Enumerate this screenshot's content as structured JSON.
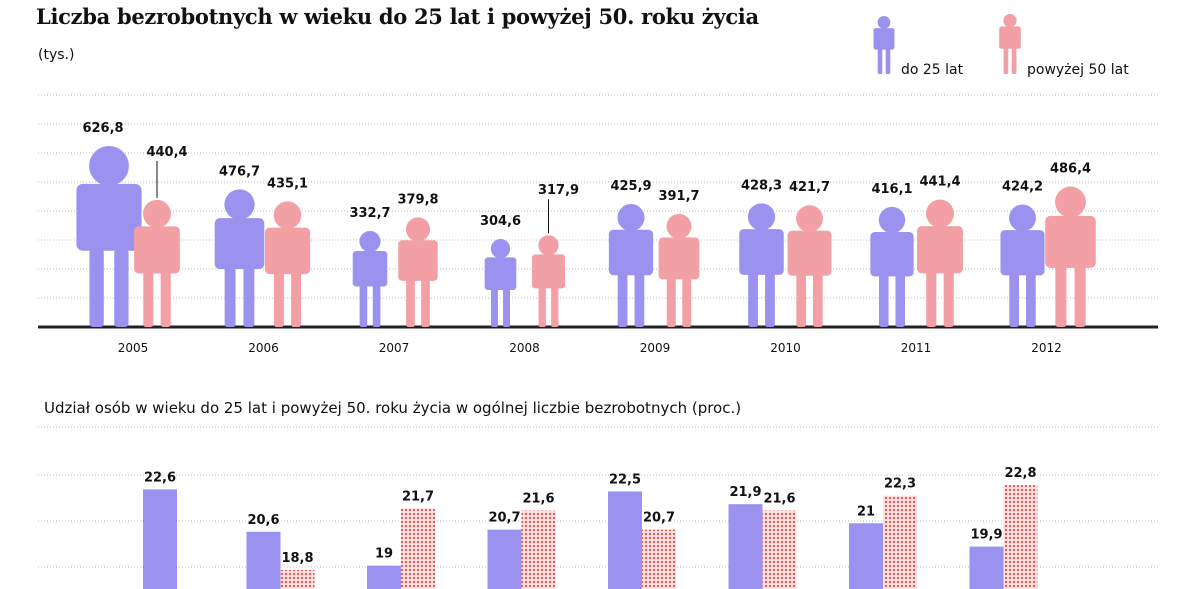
{
  "title": "Liczba bezrobotnych w wieku do 25 lat i powyżej 50. roku życia",
  "unit": "(tys.)",
  "legend": [
    {
      "name": "do 25 lat",
      "color": "#9b92f0",
      "icon": "person-icon"
    },
    {
      "name": "powyżej 50 lat",
      "color": "#f2a0a5",
      "icon": "person-icon"
    }
  ],
  "subtitle": "Udział osób w wieku do 25 lat i powyżej 50. roku życia w ogólnej liczbie bezrobotnych (proc.)",
  "chart_data": [
    {
      "type": "bar",
      "title": "Liczba bezrobotnych w wieku do 25 lat i powyżej 50. roku życia",
      "ylabel": "(tys.)",
      "categories": [
        "2005",
        "2006",
        "2007",
        "2008",
        "2009",
        "2010",
        "2011",
        "2012"
      ],
      "series": [
        {
          "name": "do 25 lat",
          "values": [
            626.8,
            476.7,
            332.7,
            304.6,
            425.9,
            428.3,
            416.1,
            424.2
          ],
          "labels": [
            "626,8",
            "476,7",
            "332,7",
            "304,6",
            "425,9",
            "428,3",
            "416,1",
            "424,2"
          ]
        },
        {
          "name": "powyżej 50 lat",
          "values": [
            440.4,
            435.1,
            379.8,
            317.9,
            391.7,
            421.7,
            441.4,
            486.4
          ],
          "labels": [
            "440,4",
            "435,1",
            "379,8",
            "317,9",
            "391,7",
            "421,7",
            "441,4",
            "486,4"
          ]
        }
      ],
      "grid": true,
      "legend_position": "top-right",
      "colors": {
        "a": "#9b92f0",
        "b": "#f2a0a5",
        "grid": "#bdbdbd",
        "axis": "#222222"
      }
    },
    {
      "type": "bar",
      "title": "Udział osób w wieku do 25 lat i powyżej 50. roku życia w ogólnej liczbie bezrobotnych (proc.)",
      "categories": [
        "2005",
        "2006",
        "2007",
        "2008",
        "2009",
        "2010",
        "2011",
        "2012"
      ],
      "series": [
        {
          "name": "do 25 lat",
          "values": [
            22.6,
            20.6,
            19,
            20.7,
            22.5,
            21.9,
            21,
            19.9
          ],
          "labels": [
            "22,6",
            "20,6",
            "19",
            "20,7",
            "22,5",
            "21,9",
            "21",
            "19,9"
          ]
        },
        {
          "name": "powyżej 50 lat",
          "values": [
            null,
            18.8,
            21.7,
            21.6,
            20.7,
            21.6,
            22.3,
            22.8
          ],
          "labels": [
            "",
            "18,8",
            "21,7",
            "21,6",
            "20,7",
            "21,6",
            "22,3",
            "22,8"
          ]
        }
      ],
      "grid": true,
      "colors": {
        "a": "#9b92f0",
        "b": "#e05a5a",
        "b_bg": "#fbdede",
        "grid": "#bdbdbd"
      }
    }
  ]
}
